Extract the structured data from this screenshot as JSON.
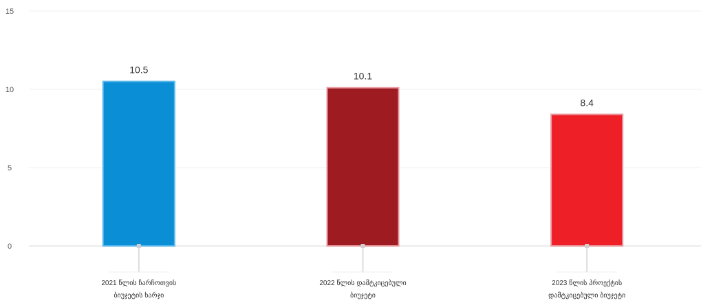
{
  "chart_data": {
    "type": "bar",
    "categories": [
      "2021 წლის ჩარჩოთვის\nბიუჯეტის ხარჯი",
      "2022 წლის დამტკიცებული\nბიუჯეტი",
      "2023 წლის პროექტის\nდამტკიცებული ბიუჯეტი"
    ],
    "values": [
      10.5,
      10.1,
      8.4
    ],
    "data_labels": [
      "10.5",
      "10.1",
      "8.4"
    ],
    "colors": [
      "#0a8fd6",
      "#9e1b22",
      "#ee1f26"
    ],
    "ylim": [
      0,
      15
    ],
    "yticks": [
      "0",
      "5",
      "10",
      "15"
    ],
    "ytick_values": [
      0,
      5,
      10,
      15
    ],
    "grid": true,
    "title": "",
    "xlabel": "",
    "ylabel": ""
  }
}
